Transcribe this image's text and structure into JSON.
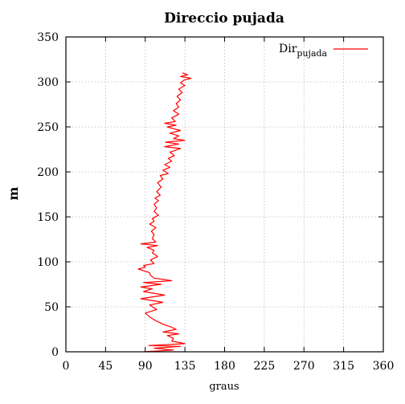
{
  "chart_data": {
    "type": "line",
    "title": "Direccio pujada",
    "xlabel": "graus",
    "ylabel": "m",
    "xlim": [
      0,
      360
    ],
    "ylim": [
      0,
      350
    ],
    "xticks": [
      0,
      45,
      90,
      135,
      180,
      225,
      270,
      315,
      360
    ],
    "yticks": [
      0,
      50,
      100,
      150,
      200,
      250,
      300,
      350
    ],
    "grid": true,
    "legend_position": "top-right",
    "legend": {
      "main": "Dir",
      "sub": "pujada"
    },
    "series": [
      {
        "name": "Dir pujada",
        "color": "#ff0000",
        "points": [
          [
            88,
            0
          ],
          [
            122,
            2
          ],
          [
            100,
            4
          ],
          [
            130,
            6
          ],
          [
            94,
            7
          ],
          [
            135,
            9
          ],
          [
            120,
            12
          ],
          [
            122,
            15
          ],
          [
            115,
            18
          ],
          [
            128,
            20
          ],
          [
            110,
            22
          ],
          [
            125,
            25
          ],
          [
            118,
            28
          ],
          [
            112,
            30
          ],
          [
            103,
            34
          ],
          [
            96,
            38
          ],
          [
            90,
            43
          ],
          [
            103,
            47
          ],
          [
            95,
            52
          ],
          [
            110,
            55
          ],
          [
            85,
            59
          ],
          [
            112,
            63
          ],
          [
            88,
            67
          ],
          [
            98,
            70
          ],
          [
            85,
            72
          ],
          [
            108,
            75
          ],
          [
            88,
            77
          ],
          [
            120,
            79
          ],
          [
            100,
            82
          ],
          [
            96,
            85
          ],
          [
            95,
            88
          ],
          [
            82,
            92
          ],
          [
            90,
            94
          ],
          [
            88,
            96
          ],
          [
            100,
            98
          ],
          [
            96,
            102
          ],
          [
            104,
            106
          ],
          [
            98,
            110
          ],
          [
            100,
            113
          ],
          [
            92,
            116
          ],
          [
            104,
            118
          ],
          [
            85,
            120
          ],
          [
            102,
            122
          ],
          [
            98,
            126
          ],
          [
            100,
            130
          ],
          [
            97,
            134
          ],
          [
            102,
            138
          ],
          [
            95,
            142
          ],
          [
            100,
            145
          ],
          [
            98,
            148
          ],
          [
            105,
            152
          ],
          [
            100,
            156
          ],
          [
            103,
            160
          ],
          [
            100,
            164
          ],
          [
            105,
            168
          ],
          [
            101,
            171
          ],
          [
            107,
            174
          ],
          [
            103,
            178
          ],
          [
            108,
            183
          ],
          [
            104,
            188
          ],
          [
            110,
            192
          ],
          [
            107,
            196
          ],
          [
            116,
            198
          ],
          [
            110,
            202
          ],
          [
            118,
            205
          ],
          [
            112,
            208
          ],
          [
            120,
            212
          ],
          [
            116,
            215
          ],
          [
            123,
            218
          ],
          [
            118,
            222
          ],
          [
            130,
            226
          ],
          [
            112,
            228
          ],
          [
            128,
            231
          ],
          [
            113,
            233
          ],
          [
            135,
            235
          ],
          [
            122,
            237
          ],
          [
            128,
            240
          ],
          [
            118,
            243
          ],
          [
            130,
            246
          ],
          [
            122,
            248
          ],
          [
            115,
            250
          ],
          [
            125,
            252
          ],
          [
            112,
            254
          ],
          [
            124,
            256
          ],
          [
            120,
            260
          ],
          [
            128,
            264
          ],
          [
            122,
            268
          ],
          [
            128,
            272
          ],
          [
            125,
            276
          ],
          [
            130,
            280
          ],
          [
            126,
            284
          ],
          [
            132,
            288
          ],
          [
            128,
            292
          ],
          [
            135,
            296
          ],
          [
            130,
            299
          ],
          [
            134,
            302
          ],
          [
            142,
            304
          ],
          [
            130,
            306
          ],
          [
            138,
            308
          ],
          [
            132,
            310
          ]
        ]
      }
    ]
  }
}
